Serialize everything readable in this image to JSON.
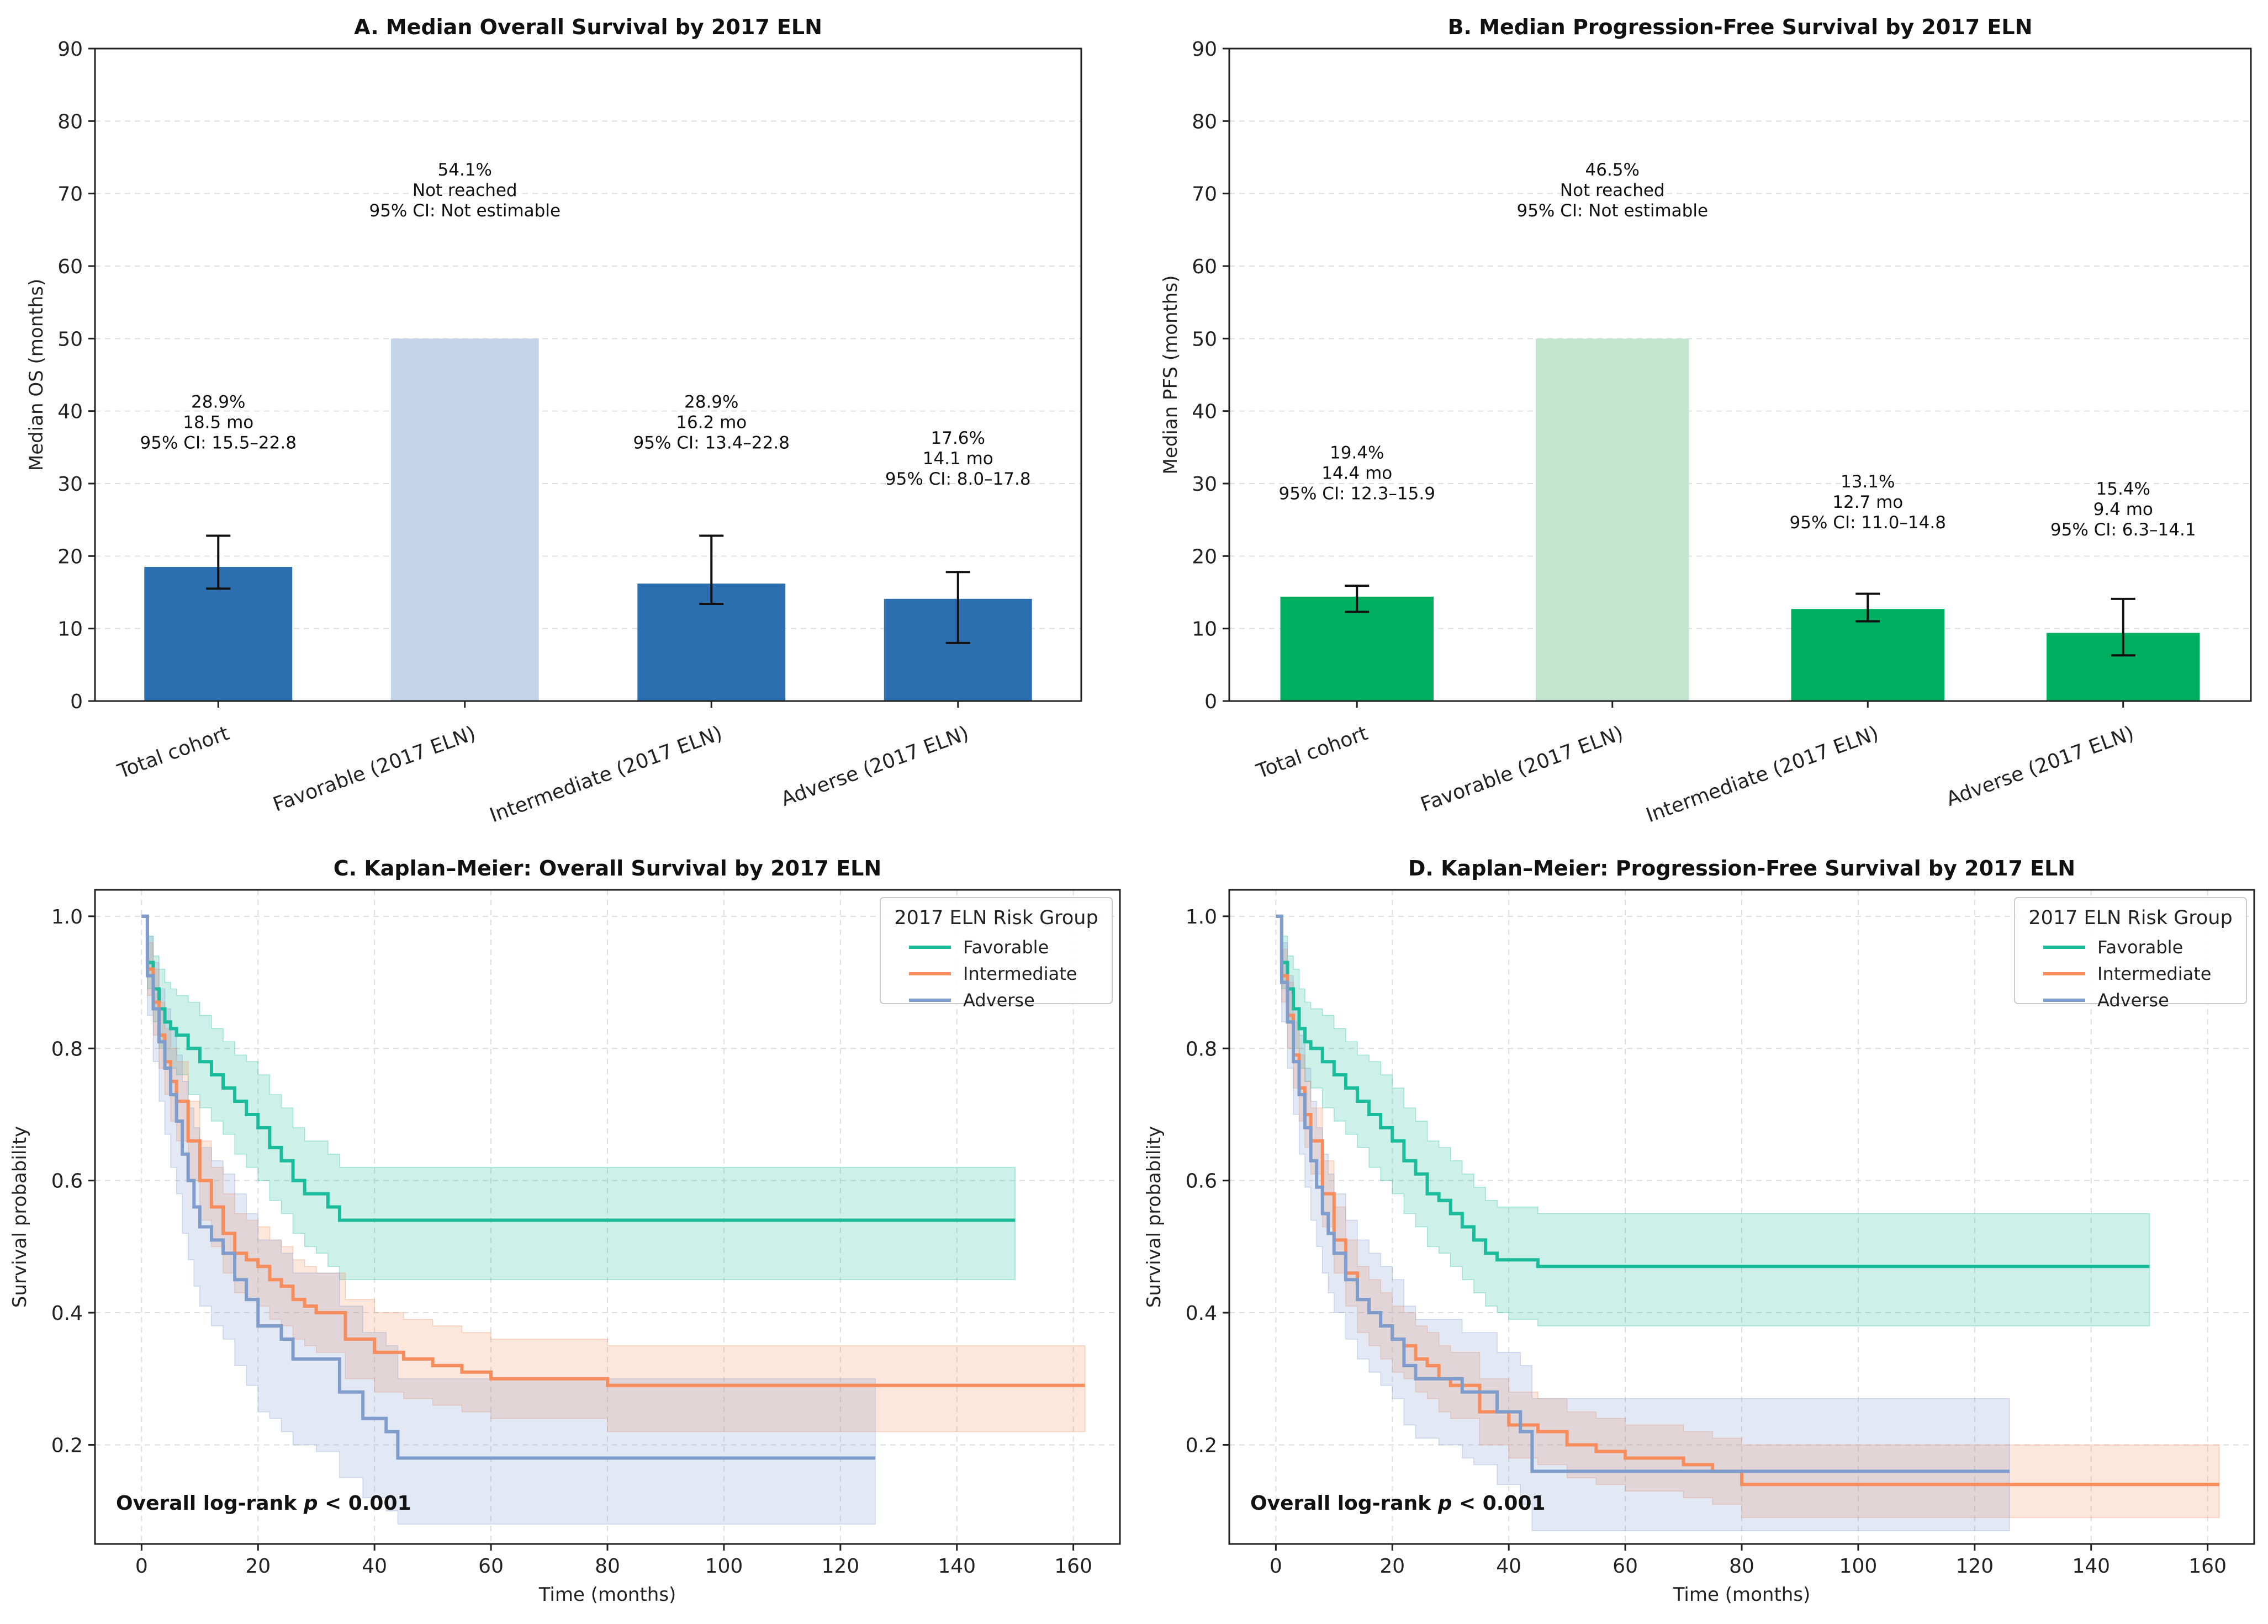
{
  "chart_data": [
    {
      "id": "A",
      "type": "bar",
      "title": "A. Median Overall Survival by 2017 ELN",
      "xlabel": "",
      "ylabel": "Median OS (months)",
      "ylim": [
        0,
        90
      ],
      "yticks": [
        "0",
        "10",
        "20",
        "30",
        "40",
        "50",
        "60",
        "70",
        "80",
        "90"
      ],
      "grid": true,
      "categories": [
        "Total cohort",
        "Favorable (2017 ELN)",
        "Intermediate (2017 ELN)",
        "Adverse (2017 ELN)"
      ],
      "values": [
        18.5,
        50,
        16.2,
        14.1
      ],
      "ci_low": [
        15.5,
        null,
        13.4,
        8.0
      ],
      "ci_high": [
        22.8,
        null,
        22.8,
        17.8
      ],
      "reached": [
        true,
        false,
        true,
        true
      ],
      "bar_color": "#2b6fb0",
      "bar_color_not_reached": "#c5d4e8",
      "annotations": [
        [
          "28.9%",
          "18.5 mo",
          "95% CI: 15.5–22.8"
        ],
        [
          "54.1%",
          "Not reached",
          "95% CI: Not estimable"
        ],
        [
          "28.9%",
          "16.2 mo",
          "95% CI: 13.4–22.8"
        ],
        [
          "17.6%",
          "14.1 mo",
          "95% CI: 8.0–17.8"
        ]
      ],
      "annotation_y": [
        35,
        67,
        35,
        30
      ]
    },
    {
      "id": "B",
      "type": "bar",
      "title": "B. Median Progression-Free Survival by 2017 ELN",
      "xlabel": "",
      "ylabel": "Median PFS (months)",
      "ylim": [
        0,
        90
      ],
      "yticks": [
        "0",
        "10",
        "20",
        "30",
        "40",
        "50",
        "60",
        "70",
        "80",
        "90"
      ],
      "grid": true,
      "categories": [
        "Total cohort",
        "Favorable (2017 ELN)",
        "Intermediate (2017 ELN)",
        "Adverse (2017 ELN)"
      ],
      "values": [
        14.4,
        50,
        12.7,
        9.4
      ],
      "ci_low": [
        12.3,
        null,
        11.0,
        6.3
      ],
      "ci_high": [
        15.9,
        null,
        14.8,
        14.1
      ],
      "reached": [
        true,
        false,
        true,
        true
      ],
      "bar_color": "#00b060",
      "bar_color_not_reached": "#c4e5d0",
      "annotations": [
        [
          "19.4%",
          "14.4 mo",
          "95% CI: 12.3–15.9"
        ],
        [
          "46.5%",
          "Not reached",
          "95% CI: Not estimable"
        ],
        [
          "13.1%",
          "12.7 mo",
          "95% CI: 11.0–14.8"
        ],
        [
          "15.4%",
          "9.4 mo",
          "95% CI: 6.3–14.1"
        ]
      ],
      "annotation_y": [
        28,
        67,
        24,
        23
      ]
    },
    {
      "id": "C",
      "type": "line",
      "title": "C. Kaplan–Meier: Overall Survival by 2017 ELN",
      "xlabel": "Time (months)",
      "ylabel": "Survival probability",
      "xlim": [
        -8,
        168
      ],
      "ylim": [
        0.05,
        1.04
      ],
      "xticks": [
        0,
        20,
        40,
        60,
        80,
        100,
        120,
        140,
        160
      ],
      "yticks": [
        0.2,
        0.4,
        0.6,
        0.8,
        1.0
      ],
      "ytick_labels": [
        "0.2",
        "0.4",
        "0.6",
        "0.8",
        "1.0"
      ],
      "grid": true,
      "legend_title": "2017 ELN Risk Group",
      "legend_position": "top-right",
      "annotation": "Overall log-rank p < 0.001",
      "annotation_parts": [
        "Overall log-rank ",
        "p",
        " < 0.001"
      ],
      "series": [
        {
          "name": "Favorable",
          "color": "#1abc9c",
          "x": [
            0,
            1,
            2,
            3,
            4,
            5,
            6,
            8,
            10,
            12,
            14,
            16,
            18,
            20,
            22,
            24,
            26,
            28,
            30,
            32,
            34,
            150
          ],
          "y": [
            1.0,
            0.93,
            0.89,
            0.86,
            0.84,
            0.83,
            0.82,
            0.8,
            0.78,
            0.76,
            0.74,
            0.72,
            0.7,
            0.68,
            0.65,
            0.63,
            0.6,
            0.58,
            0.58,
            0.56,
            0.54,
            0.54
          ],
          "ci_low": [
            1.0,
            0.89,
            0.84,
            0.8,
            0.78,
            0.77,
            0.76,
            0.73,
            0.71,
            0.69,
            0.67,
            0.64,
            0.62,
            0.6,
            0.57,
            0.55,
            0.52,
            0.5,
            0.49,
            0.47,
            0.45,
            0.45
          ],
          "ci_high": [
            1.0,
            0.97,
            0.94,
            0.92,
            0.9,
            0.89,
            0.88,
            0.87,
            0.85,
            0.83,
            0.81,
            0.79,
            0.78,
            0.76,
            0.73,
            0.71,
            0.68,
            0.66,
            0.66,
            0.64,
            0.62,
            0.62
          ]
        },
        {
          "name": "Intermediate",
          "color": "#f78d5c",
          "x": [
            0,
            1,
            2,
            3,
            4,
            5,
            6,
            8,
            10,
            12,
            14,
            16,
            18,
            20,
            22,
            24,
            26,
            28,
            30,
            35,
            40,
            45,
            50,
            55,
            60,
            70,
            80,
            162
          ],
          "y": [
            1.0,
            0.92,
            0.87,
            0.82,
            0.78,
            0.75,
            0.72,
            0.66,
            0.6,
            0.56,
            0.52,
            0.49,
            0.48,
            0.47,
            0.45,
            0.44,
            0.42,
            0.41,
            0.4,
            0.36,
            0.34,
            0.33,
            0.32,
            0.31,
            0.3,
            0.3,
            0.29,
            0.29
          ],
          "ci_low": [
            1.0,
            0.88,
            0.82,
            0.77,
            0.73,
            0.69,
            0.66,
            0.6,
            0.54,
            0.5,
            0.46,
            0.43,
            0.42,
            0.41,
            0.39,
            0.38,
            0.36,
            0.35,
            0.34,
            0.3,
            0.28,
            0.27,
            0.26,
            0.25,
            0.24,
            0.24,
            0.22,
            0.22
          ],
          "ci_high": [
            1.0,
            0.96,
            0.92,
            0.87,
            0.83,
            0.8,
            0.78,
            0.72,
            0.66,
            0.62,
            0.58,
            0.55,
            0.54,
            0.53,
            0.51,
            0.5,
            0.48,
            0.47,
            0.46,
            0.42,
            0.4,
            0.39,
            0.38,
            0.37,
            0.36,
            0.36,
            0.35,
            0.35
          ]
        },
        {
          "name": "Adverse",
          "color": "#7f9dcc",
          "x": [
            0,
            1,
            2,
            3,
            4,
            5,
            6,
            7,
            8,
            9,
            10,
            12,
            14,
            16,
            18,
            20,
            22,
            24,
            26,
            30,
            34,
            38,
            42,
            44,
            126
          ],
          "y": [
            1.0,
            0.91,
            0.86,
            0.81,
            0.77,
            0.73,
            0.69,
            0.64,
            0.6,
            0.56,
            0.53,
            0.51,
            0.49,
            0.45,
            0.42,
            0.38,
            0.38,
            0.36,
            0.33,
            0.33,
            0.28,
            0.24,
            0.22,
            0.18,
            0.18
          ],
          "ci_low": [
            1.0,
            0.85,
            0.78,
            0.72,
            0.67,
            0.62,
            0.58,
            0.52,
            0.48,
            0.44,
            0.41,
            0.38,
            0.36,
            0.32,
            0.29,
            0.25,
            0.24,
            0.22,
            0.2,
            0.19,
            0.15,
            0.12,
            0.1,
            0.08,
            0.08
          ],
          "ci_high": [
            1.0,
            0.97,
            0.93,
            0.89,
            0.86,
            0.83,
            0.79,
            0.75,
            0.71,
            0.68,
            0.65,
            0.63,
            0.61,
            0.58,
            0.55,
            0.51,
            0.51,
            0.49,
            0.46,
            0.46,
            0.41,
            0.37,
            0.35,
            0.3,
            0.3
          ]
        }
      ]
    },
    {
      "id": "D",
      "type": "line",
      "title": "D. Kaplan–Meier: Progression-Free Survival by 2017 ELN",
      "xlabel": "Time (months)",
      "ylabel": "Survival probability",
      "xlim": [
        -8,
        168
      ],
      "ylim": [
        0.05,
        1.04
      ],
      "xticks": [
        0,
        20,
        40,
        60,
        80,
        100,
        120,
        140,
        160
      ],
      "yticks": [
        0.2,
        0.4,
        0.6,
        0.8,
        1.0
      ],
      "ytick_labels": [
        "0.2",
        "0.4",
        "0.6",
        "0.8",
        "1.0"
      ],
      "grid": true,
      "legend_title": "2017 ELN Risk Group",
      "legend_position": "top-right",
      "annotation": "Overall log-rank p < 0.001",
      "annotation_parts": [
        "Overall log-rank ",
        "p",
        " < 0.001"
      ],
      "series": [
        {
          "name": "Favorable",
          "color": "#1abc9c",
          "x": [
            0,
            1,
            2,
            3,
            4,
            5,
            6,
            8,
            10,
            12,
            14,
            16,
            18,
            20,
            22,
            24,
            26,
            28,
            30,
            32,
            34,
            36,
            38,
            40,
            45,
            150
          ],
          "y": [
            1.0,
            0.93,
            0.89,
            0.86,
            0.83,
            0.81,
            0.8,
            0.78,
            0.76,
            0.74,
            0.72,
            0.7,
            0.68,
            0.66,
            0.63,
            0.61,
            0.58,
            0.57,
            0.55,
            0.53,
            0.51,
            0.49,
            0.48,
            0.48,
            0.47,
            0.47
          ],
          "ci_low": [
            1.0,
            0.89,
            0.84,
            0.8,
            0.77,
            0.75,
            0.74,
            0.71,
            0.69,
            0.67,
            0.65,
            0.62,
            0.6,
            0.58,
            0.55,
            0.53,
            0.5,
            0.49,
            0.47,
            0.45,
            0.43,
            0.41,
            0.4,
            0.39,
            0.38,
            0.38
          ],
          "ci_high": [
            1.0,
            0.97,
            0.94,
            0.92,
            0.89,
            0.87,
            0.86,
            0.85,
            0.83,
            0.81,
            0.79,
            0.78,
            0.76,
            0.74,
            0.71,
            0.69,
            0.66,
            0.65,
            0.63,
            0.61,
            0.59,
            0.57,
            0.56,
            0.56,
            0.55,
            0.55
          ]
        },
        {
          "name": "Intermediate",
          "color": "#f78d5c",
          "x": [
            0,
            1,
            2,
            3,
            4,
            5,
            6,
            8,
            10,
            12,
            14,
            16,
            18,
            20,
            22,
            24,
            26,
            28,
            30,
            35,
            40,
            45,
            50,
            55,
            60,
            70,
            75,
            80,
            162
          ],
          "y": [
            1.0,
            0.91,
            0.85,
            0.79,
            0.74,
            0.7,
            0.66,
            0.58,
            0.51,
            0.46,
            0.42,
            0.4,
            0.38,
            0.36,
            0.35,
            0.33,
            0.32,
            0.3,
            0.29,
            0.25,
            0.23,
            0.22,
            0.2,
            0.19,
            0.18,
            0.17,
            0.16,
            0.14,
            0.14
          ],
          "ci_low": [
            1.0,
            0.87,
            0.8,
            0.74,
            0.69,
            0.65,
            0.61,
            0.53,
            0.46,
            0.41,
            0.37,
            0.35,
            0.33,
            0.31,
            0.3,
            0.28,
            0.27,
            0.25,
            0.24,
            0.2,
            0.18,
            0.17,
            0.15,
            0.14,
            0.13,
            0.12,
            0.11,
            0.09,
            0.09
          ],
          "ci_high": [
            1.0,
            0.95,
            0.9,
            0.84,
            0.79,
            0.75,
            0.71,
            0.63,
            0.56,
            0.51,
            0.47,
            0.45,
            0.43,
            0.41,
            0.4,
            0.38,
            0.37,
            0.35,
            0.34,
            0.3,
            0.28,
            0.27,
            0.25,
            0.24,
            0.23,
            0.22,
            0.21,
            0.2,
            0.2
          ]
        },
        {
          "name": "Adverse",
          "color": "#7f9dcc",
          "x": [
            0,
            1,
            2,
            3,
            4,
            5,
            6,
            7,
            8,
            9,
            10,
            12,
            14,
            16,
            18,
            20,
            22,
            24,
            28,
            32,
            34,
            38,
            42,
            44,
            126
          ],
          "y": [
            1.0,
            0.9,
            0.84,
            0.78,
            0.73,
            0.68,
            0.63,
            0.59,
            0.55,
            0.52,
            0.49,
            0.45,
            0.42,
            0.4,
            0.38,
            0.36,
            0.32,
            0.3,
            0.3,
            0.28,
            0.28,
            0.25,
            0.22,
            0.16,
            0.16
          ],
          "ci_low": [
            1.0,
            0.84,
            0.77,
            0.7,
            0.64,
            0.59,
            0.54,
            0.5,
            0.46,
            0.43,
            0.4,
            0.36,
            0.33,
            0.31,
            0.29,
            0.27,
            0.23,
            0.21,
            0.2,
            0.18,
            0.17,
            0.14,
            0.11,
            0.07,
            0.07
          ],
          "ci_high": [
            1.0,
            0.96,
            0.91,
            0.86,
            0.82,
            0.77,
            0.72,
            0.68,
            0.64,
            0.61,
            0.58,
            0.54,
            0.51,
            0.49,
            0.47,
            0.45,
            0.41,
            0.39,
            0.39,
            0.37,
            0.37,
            0.34,
            0.32,
            0.27,
            0.27
          ]
        }
      ]
    }
  ]
}
